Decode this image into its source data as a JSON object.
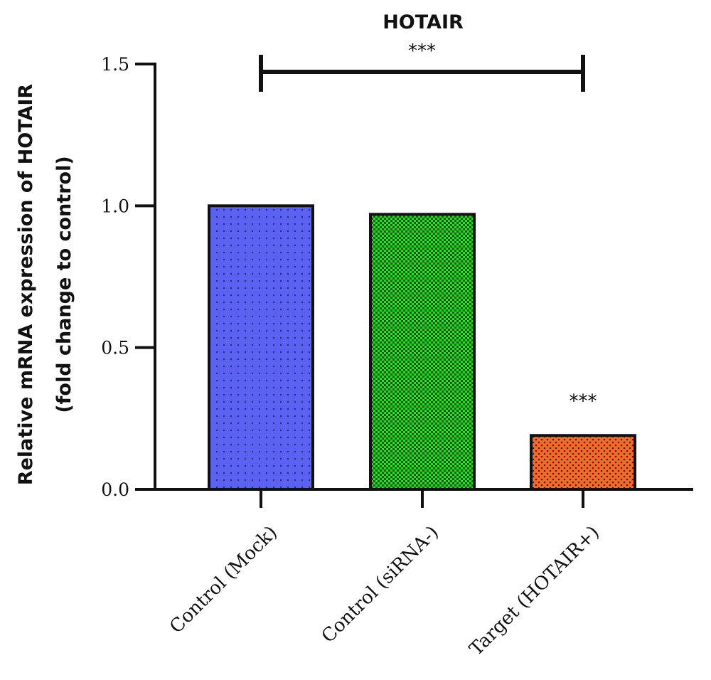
{
  "chart_data": {
    "type": "bar",
    "title": "HOTAIR",
    "ylabel_line1": "Relative mRNA expression of HOTAIR",
    "ylabel_line2": "(fold change to control)",
    "xlabel": "",
    "categories": [
      "Control (Mock)",
      "Control (siRNA-)",
      "Target (HOTAIR+)"
    ],
    "values": [
      1.0,
      0.97,
      0.19
    ],
    "bar_colors": [
      "#5b62f2",
      "#22e020",
      "#f26b2a"
    ],
    "bar_patterns": [
      "fine-dots",
      "checker",
      "dense-dots"
    ],
    "ylim": [
      0,
      1.5
    ],
    "yticks": [
      "0.0",
      "0.5",
      "1.0",
      "1.5"
    ],
    "ytick_values": [
      0,
      0.5,
      1.0,
      1.5
    ],
    "grid": false,
    "legend": "none",
    "bar_annotations": [
      {
        "category": "Target (HOTAIR+)",
        "text": "***"
      }
    ],
    "comparison": {
      "from": "Control (Mock)",
      "to": "Target (HOTAIR+)",
      "text": "***",
      "at_value": 1.47
    }
  }
}
